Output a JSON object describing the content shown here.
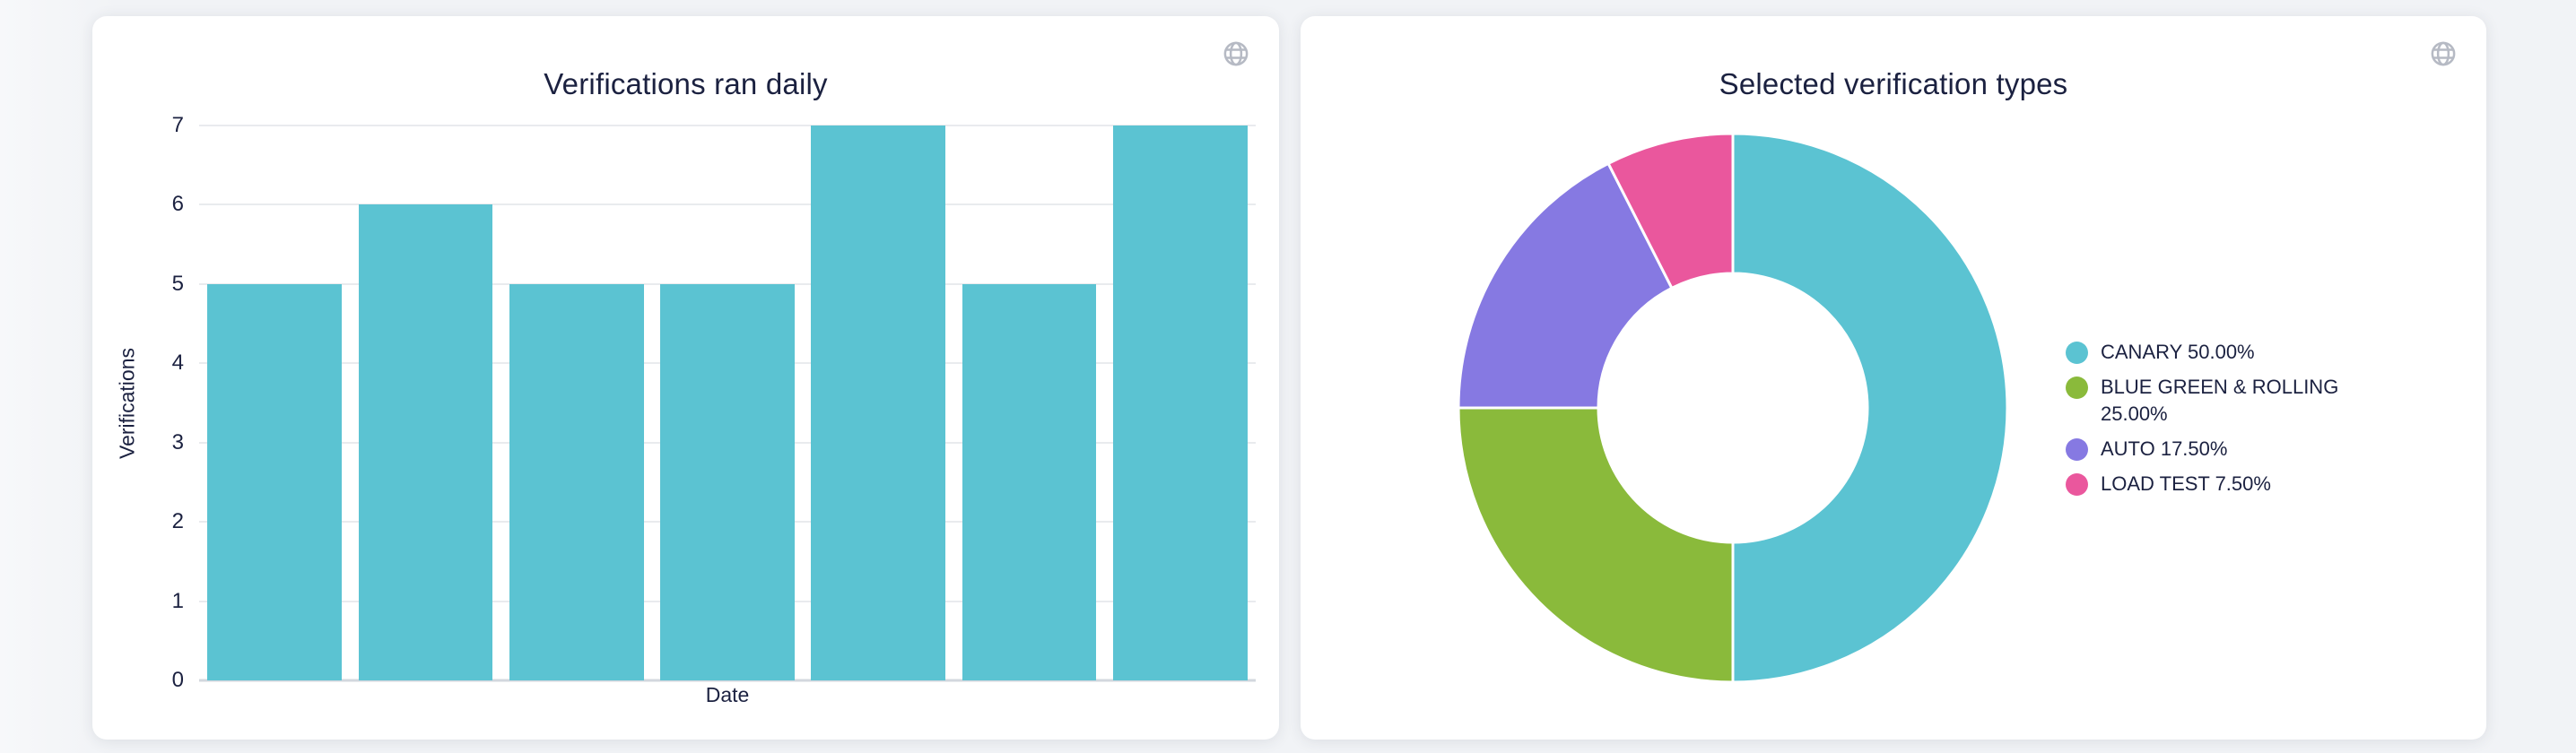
{
  "page": {
    "background_color": "#f1f3f6",
    "text_color": "#1b2140"
  },
  "icons": {
    "card_action": "globe-icon",
    "icon_color": "#b6bac4"
  },
  "chart_data": [
    {
      "type": "bar",
      "title": "Verifications ran daily",
      "xlabel": "Date",
      "ylabel": "Verifications",
      "categories": [
        "",
        "",
        "",
        "",
        "",
        "",
        ""
      ],
      "values": [
        5,
        6,
        5,
        5,
        7,
        5,
        7
      ],
      "ylim": [
        0,
        7
      ],
      "yticks": [
        0,
        1,
        2,
        3,
        4,
        5,
        6,
        7
      ],
      "grid": true,
      "bar_color": "#5bc3d2",
      "legend_position": "none"
    },
    {
      "type": "donut",
      "title": "Selected verification types",
      "legend_position": "right",
      "slices": [
        {
          "label": "CANARY",
          "pct": 50.0,
          "legend_text": "CANARY 50.00%",
          "color": "#5bc3d2"
        },
        {
          "label": "BLUE GREEN & ROLLING",
          "pct": 25.0,
          "legend_text": "BLUE GREEN & ROLLING 25.00%",
          "color": "#8aba3b"
        },
        {
          "label": "AUTO",
          "pct": 17.5,
          "legend_text": "AUTO 17.50%",
          "color": "#8679e2"
        },
        {
          "label": "LOAD TEST",
          "pct": 7.5,
          "legend_text": "LOAD TEST 7.50%",
          "color": "#ea579d"
        }
      ]
    }
  ]
}
